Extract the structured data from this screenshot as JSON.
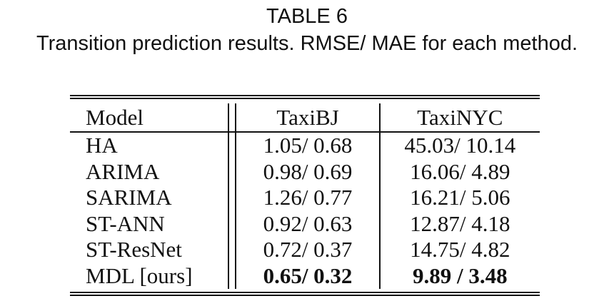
{
  "caption": {
    "label": "TABLE 6",
    "text": "Transition prediction results. RMSE/ MAE for each method."
  },
  "table": {
    "headers": [
      "Model",
      "TaxiBJ",
      "TaxiNYC"
    ],
    "rows": [
      {
        "model": "HA",
        "taxibj": "1.05/ 0.68",
        "taxinyc": "45.03/ 10.14"
      },
      {
        "model": "ARIMA",
        "taxibj": "0.98/ 0.69",
        "taxinyc": "16.06/ 4.89"
      },
      {
        "model": "SARIMA",
        "taxibj": "1.26/ 0.77",
        "taxinyc": "16.21/ 5.06"
      },
      {
        "model": "ST-ANN",
        "taxibj": "0.92/ 0.63",
        "taxinyc": "12.87/ 4.18"
      },
      {
        "model": "ST-ResNet",
        "taxibj": "0.72/ 0.37",
        "taxinyc": "14.75/ 4.82"
      },
      {
        "model": "MDL [ours]",
        "taxibj": "0.65/ 0.32",
        "taxinyc": "9.89 / 3.48",
        "bold_values": true
      }
    ]
  }
}
